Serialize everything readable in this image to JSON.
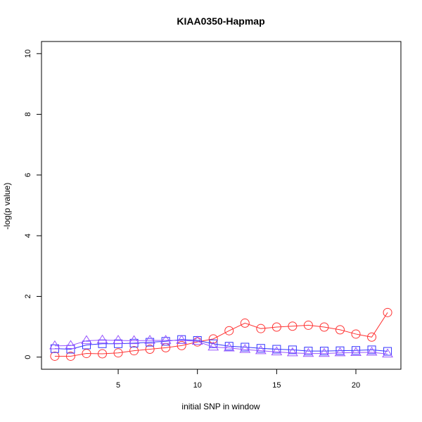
{
  "chart_data": {
    "type": "line",
    "title": "KIAA0350-Hapmap",
    "xlabel": "initial SNP in window",
    "ylabel": "-log(p value)",
    "xlim": [
      0.16,
      22.84
    ],
    "ylim": [
      -0.4,
      10.4
    ],
    "x_ticks": [
      5,
      10,
      15,
      20
    ],
    "y_ticks": [
      0,
      2,
      4,
      6,
      8,
      10
    ],
    "grid": false,
    "x": [
      1,
      2,
      3,
      4,
      5,
      6,
      7,
      8,
      9,
      10,
      11,
      12,
      13,
      14,
      15,
      16,
      17,
      18,
      19,
      20,
      21,
      22
    ],
    "series": [
      {
        "marker": "circle",
        "color": "#ff3333",
        "values": [
          0.03,
          0.03,
          0.12,
          0.11,
          0.14,
          0.21,
          0.26,
          0.31,
          0.38,
          0.5,
          0.6,
          0.87,
          1.12,
          0.94,
          0.99,
          1.02,
          1.05,
          0.99,
          0.9,
          0.76,
          0.66,
          1.47
        ]
      },
      {
        "marker": "square",
        "color": "#3333ff",
        "values": [
          0.28,
          0.26,
          0.4,
          0.44,
          0.44,
          0.46,
          0.49,
          0.52,
          0.58,
          0.55,
          0.44,
          0.36,
          0.33,
          0.29,
          0.26,
          0.24,
          0.2,
          0.2,
          0.21,
          0.22,
          0.24,
          0.19
        ]
      },
      {
        "marker": "triangle",
        "color": "#9955ff",
        "values": [
          0.37,
          0.38,
          0.54,
          0.56,
          0.55,
          0.54,
          0.55,
          0.55,
          0.55,
          0.52,
          0.33,
          0.3,
          0.25,
          0.21,
          0.17,
          0.14,
          0.12,
          0.12,
          0.14,
          0.15,
          0.16,
          0.1
        ]
      }
    ]
  }
}
